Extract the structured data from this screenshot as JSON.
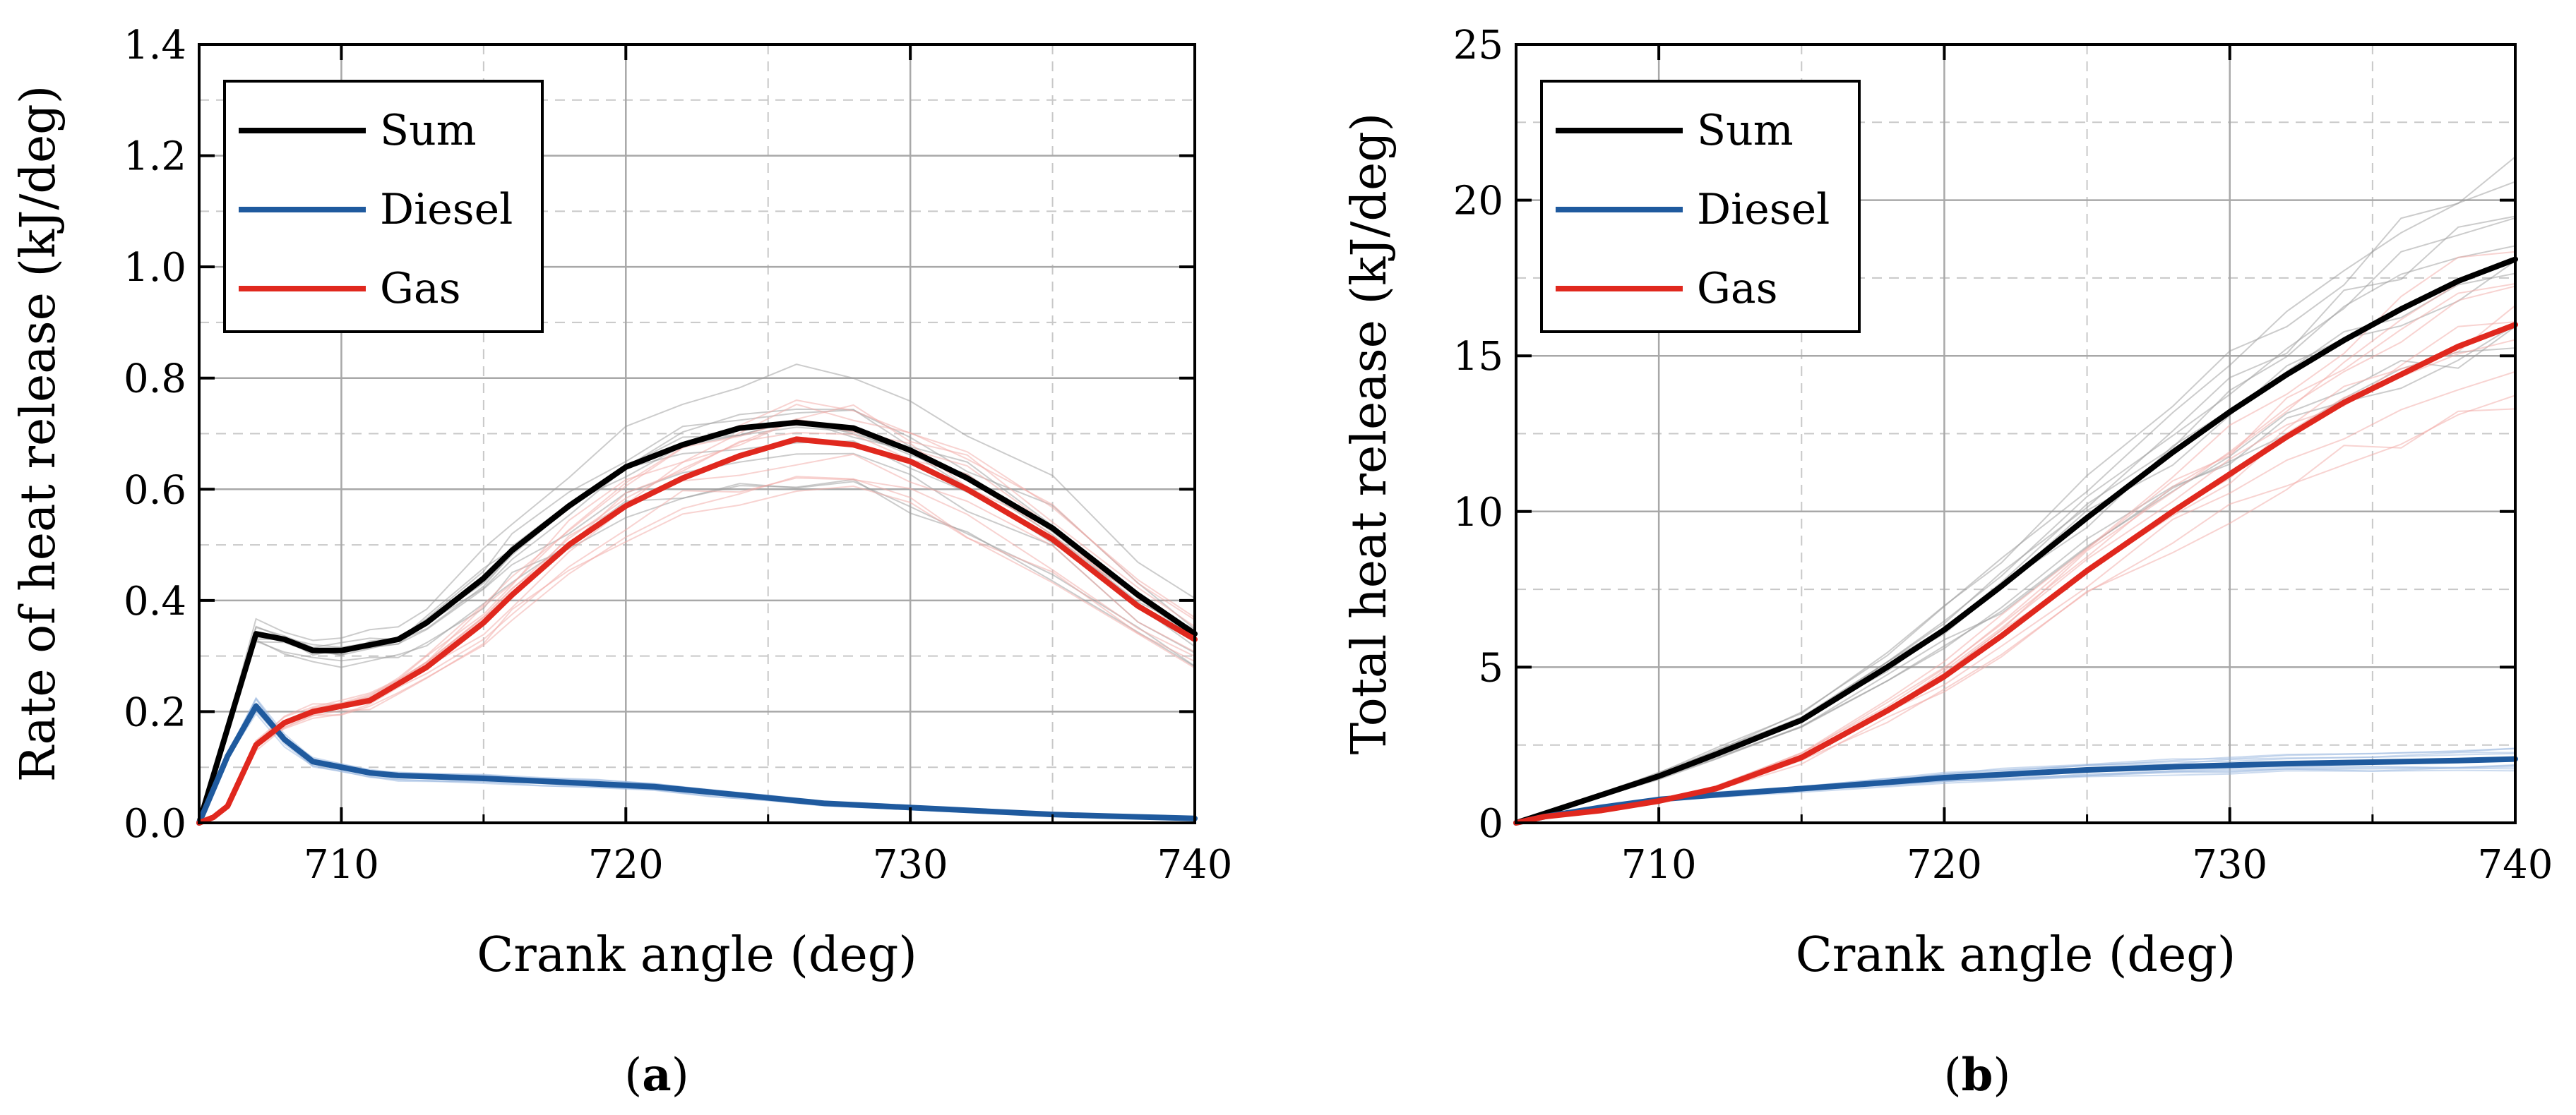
{
  "chart_data": [
    {
      "type": "line",
      "panel": "a",
      "ylabel": "Rate of heat release (kJ/deg)",
      "xlabel": "Crank angle (deg)",
      "xlim": [
        705,
        740
      ],
      "ylim": [
        0,
        1.4
      ],
      "xticks": [
        710,
        720,
        730,
        740
      ],
      "yticks": [
        0.0,
        0.2,
        0.4,
        0.6,
        0.8,
        1.0,
        1.2,
        1.4
      ],
      "ytick_labels": [
        "0.0",
        "0.2",
        "0.4",
        "0.6",
        "0.8",
        "1.0",
        "1.2",
        "1.4"
      ],
      "legend_position": "top-left",
      "grid": true,
      "caption_open": "(",
      "caption_letter": "a",
      "caption_close": ")",
      "series": [
        {
          "name": "Sum",
          "color": "#000000",
          "x": [
            705,
            706,
            707,
            708,
            709,
            710,
            711,
            712,
            713,
            715,
            716,
            718,
            720,
            722,
            724,
            726,
            728,
            730,
            732,
            735,
            738,
            740
          ],
          "y": [
            0.0,
            0.17,
            0.34,
            0.33,
            0.31,
            0.31,
            0.32,
            0.33,
            0.36,
            0.44,
            0.49,
            0.57,
            0.64,
            0.68,
            0.71,
            0.72,
            0.71,
            0.67,
            0.62,
            0.53,
            0.41,
            0.34
          ]
        },
        {
          "name": "Diesel",
          "color": "#1f5a9e",
          "x": [
            705,
            706,
            707,
            708,
            709,
            710,
            711,
            712,
            715,
            717,
            719,
            721,
            723,
            725,
            727,
            729,
            731,
            733,
            735,
            737,
            740
          ],
          "y": [
            0.0,
            0.12,
            0.21,
            0.15,
            0.11,
            0.1,
            0.09,
            0.085,
            0.08,
            0.075,
            0.07,
            0.065,
            0.055,
            0.045,
            0.035,
            0.03,
            0.025,
            0.02,
            0.015,
            0.012,
            0.008
          ]
        },
        {
          "name": "Gas",
          "color": "#e0281e",
          "x": [
            705,
            705.5,
            706,
            707,
            708,
            709,
            710,
            711,
            712,
            713,
            715,
            716,
            718,
            720,
            722,
            724,
            726,
            728,
            730,
            732,
            735,
            738,
            740
          ],
          "y": [
            0.0,
            0.01,
            0.03,
            0.14,
            0.18,
            0.2,
            0.21,
            0.22,
            0.25,
            0.28,
            0.36,
            0.41,
            0.5,
            0.57,
            0.62,
            0.66,
            0.69,
            0.68,
            0.65,
            0.6,
            0.51,
            0.39,
            0.33
          ]
        }
      ]
    },
    {
      "type": "line",
      "panel": "b",
      "ylabel": "Total heat release (kJ/deg)",
      "xlabel": "Crank angle (deg)",
      "xlim": [
        705,
        740
      ],
      "ylim": [
        0,
        25
      ],
      "xticks": [
        710,
        720,
        730,
        740
      ],
      "yticks": [
        0,
        5,
        10,
        15,
        20,
        25
      ],
      "ytick_labels": [
        "0",
        "5",
        "10",
        "15",
        "20",
        "25"
      ],
      "legend_position": "top-left",
      "grid": true,
      "caption_open": "(",
      "caption_letter": "b",
      "caption_close": ")",
      "series": [
        {
          "name": "Sum",
          "color": "#000000",
          "x": [
            705,
            706,
            708,
            710,
            712,
            715,
            718,
            720,
            722,
            725,
            728,
            730,
            732,
            734,
            736,
            738,
            740
          ],
          "y": [
            0.0,
            0.3,
            0.9,
            1.5,
            2.2,
            3.3,
            5.0,
            6.2,
            7.6,
            9.8,
            11.9,
            13.2,
            14.4,
            15.5,
            16.5,
            17.4,
            18.1
          ]
        },
        {
          "name": "Diesel",
          "color": "#1f5a9e",
          "x": [
            705,
            706,
            708,
            710,
            712,
            715,
            718,
            720,
            722,
            725,
            728,
            730,
            732,
            735,
            738,
            740
          ],
          "y": [
            0.0,
            0.2,
            0.5,
            0.75,
            0.9,
            1.1,
            1.3,
            1.45,
            1.55,
            1.7,
            1.8,
            1.85,
            1.9,
            1.95,
            2.0,
            2.05
          ]
        },
        {
          "name": "Gas",
          "color": "#e0281e",
          "x": [
            705,
            706,
            708,
            710,
            712,
            715,
            718,
            720,
            722,
            725,
            728,
            730,
            732,
            734,
            736,
            738,
            740
          ],
          "y": [
            0.0,
            0.2,
            0.4,
            0.7,
            1.1,
            2.1,
            3.6,
            4.7,
            6.0,
            8.1,
            10.0,
            11.2,
            12.4,
            13.5,
            14.4,
            15.3,
            16.0
          ]
        }
      ]
    }
  ]
}
